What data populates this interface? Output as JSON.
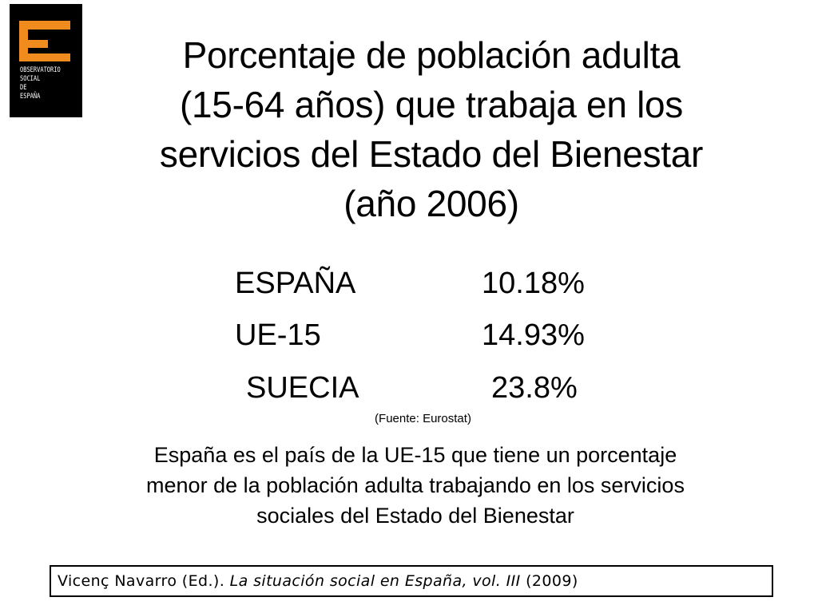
{
  "logo": {
    "lines": [
      "OBSERVATORIO",
      "SOCIAL",
      "DE",
      "ESPAÑA"
    ],
    "accent_color": "#f08c1e",
    "background_color": "#000000"
  },
  "title": {
    "lines": [
      "Porcentaje de población adulta",
      "(15-64 años) que trabaja en los",
      "servicios del Estado del Bienestar",
      "(año 2006)"
    ]
  },
  "rows": [
    {
      "label": "ESPAÑA",
      "value": "10.18%"
    },
    {
      "label": "UE-15",
      "value": "14.93%"
    },
    {
      "label": "SUECIA",
      "value": "23.8%"
    }
  ],
  "source": "(Fuente: Eurostat)",
  "summary": {
    "lines": [
      "España es el país de la UE-15 que tiene un porcentaje",
      "menor de la población adulta trabajando en los servicios",
      "sociales del Estado del Bienestar"
    ]
  },
  "citation": {
    "author": "Vicenç Navarro (Ed.).",
    "title": "La situación social en España, vol. III",
    "year": "(2009)"
  }
}
